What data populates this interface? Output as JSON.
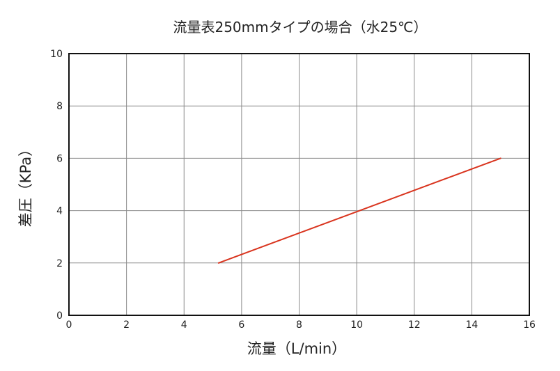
{
  "chart_data": {
    "type": "line",
    "title": "流量表250mmタイプの場合（水25℃）",
    "xlabel": "流量（L/min）",
    "ylabel": "差圧（KPa）",
    "xlim": [
      0,
      16
    ],
    "ylim": [
      0,
      10
    ],
    "xticks": [
      "0",
      "2",
      "4",
      "6",
      "8",
      "10",
      "12",
      "14",
      "16"
    ],
    "yticks": [
      "0",
      "2",
      "4",
      "6",
      "8",
      "10"
    ],
    "grid": true,
    "series": [
      {
        "color": "#d9341e",
        "x": [
          5.2,
          15
        ],
        "y": [
          2,
          6
        ]
      }
    ]
  }
}
